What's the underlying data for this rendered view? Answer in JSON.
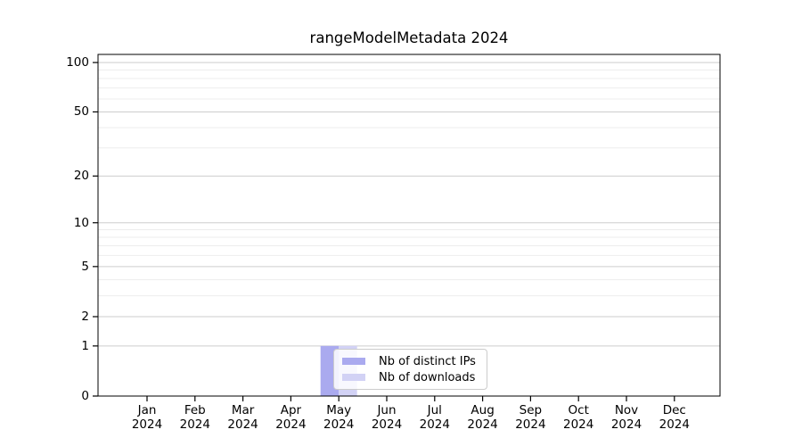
{
  "title": "rangeModelMetadata 2024",
  "legend": {
    "entries": [
      {
        "label": "Nb of distinct IPs",
        "color": "#aaaaef"
      },
      {
        "label": "Nb of downloads",
        "color": "#d2d2f5"
      }
    ]
  },
  "chart_data": {
    "type": "bar",
    "title": "rangeModelMetadata 2024",
    "months": [
      "Jan",
      "Feb",
      "Mar",
      "Apr",
      "May",
      "Jun",
      "Jul",
      "Aug",
      "Sep",
      "Oct",
      "Nov",
      "Dec"
    ],
    "year_label": "2024",
    "series": [
      {
        "name": "Nb of distinct IPs",
        "color": "#aaaaef",
        "values": [
          0,
          0,
          0,
          0,
          1,
          0,
          0,
          0,
          0,
          0,
          0,
          0
        ]
      },
      {
        "name": "Nb of downloads",
        "color": "#d2d2f5",
        "values": [
          0,
          0,
          0,
          0,
          1,
          0,
          0,
          0,
          0,
          0,
          0,
          0
        ]
      }
    ],
    "xlabel": "",
    "ylabel": "",
    "yscale": "log1p",
    "yticks": [
      0,
      1,
      2,
      5,
      10,
      20,
      50,
      100
    ],
    "yticks_minor": [
      3,
      4,
      6,
      7,
      8,
      9,
      30,
      40,
      60,
      70,
      80,
      90
    ],
    "ylim": [
      0,
      112
    ],
    "grid": true,
    "legend_position": "inside-bottom-center",
    "colors": {
      "axis": "#000000",
      "text": "#000000",
      "grid_major": "#cdcdcd",
      "grid_minor": "#ededed",
      "background": "#ffffff"
    }
  }
}
